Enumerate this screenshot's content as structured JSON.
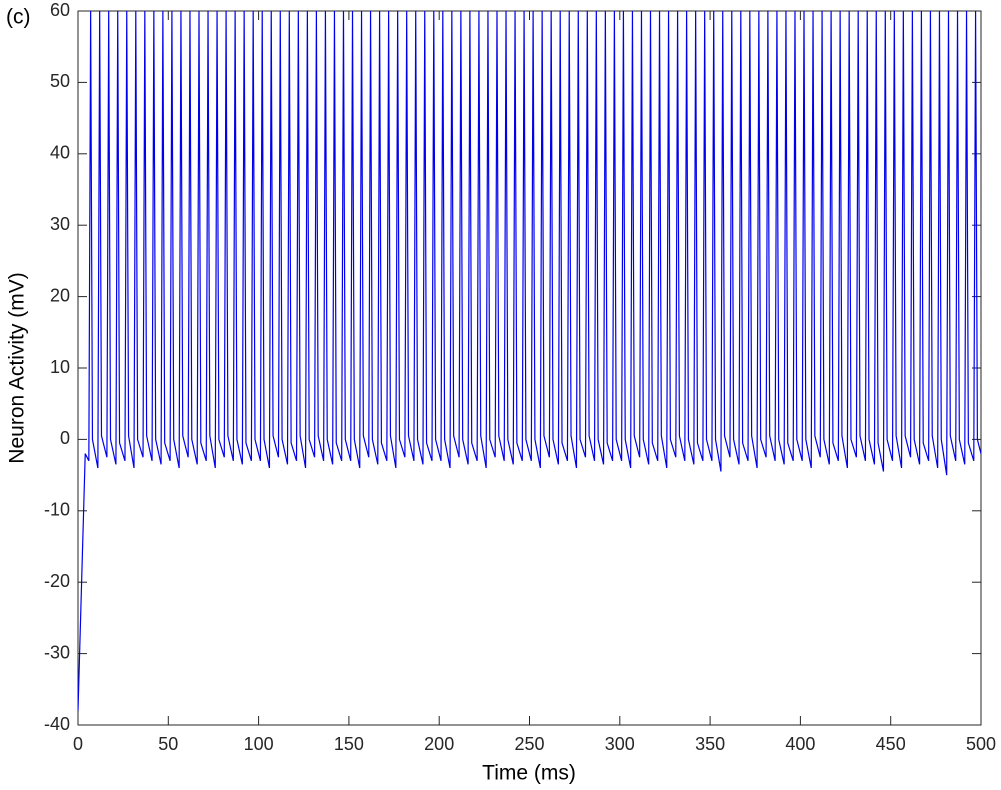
{
  "chart_data": {
    "type": "line",
    "panel_label": "(c)",
    "x_label": "Time (ms)",
    "y_label": "Neuron Activity (mV)",
    "xlim": [
      0,
      500
    ],
    "ylim": [
      -40,
      60
    ],
    "xticks": [
      0,
      50,
      100,
      150,
      200,
      250,
      300,
      350,
      400,
      450,
      500
    ],
    "yticks": [
      -40,
      -30,
      -20,
      -10,
      0,
      10,
      20,
      30,
      40,
      50,
      60
    ],
    "series": [
      {
        "color": "#0000ee",
        "x": [
          0,
          2,
          4,
          6,
          7,
          8,
          11,
          12,
          13,
          16,
          17,
          18,
          21,
          22,
          23,
          26,
          27,
          28,
          31,
          32,
          33,
          36,
          37,
          38,
          41,
          42,
          43,
          46,
          47,
          48,
          51,
          52,
          53,
          56,
          57,
          58,
          61,
          62,
          63,
          66,
          67,
          68,
          71,
          72,
          73,
          76,
          77,
          78,
          81,
          82,
          83,
          86,
          87,
          88,
          91,
          92,
          93,
          96,
          97,
          98,
          101,
          102,
          103,
          106,
          107,
          108,
          111,
          112,
          113,
          116,
          117,
          118,
          121,
          122,
          123,
          126,
          127,
          128,
          131,
          132,
          133,
          136,
          137,
          138,
          141,
          142,
          143,
          146,
          147,
          148,
          151,
          152,
          153,
          156,
          157,
          158,
          161,
          162,
          163,
          166,
          167,
          168,
          171,
          172,
          173,
          176,
          177,
          178,
          181,
          182,
          183,
          186,
          187,
          188,
          191,
          192,
          193,
          196,
          197,
          198,
          201,
          202,
          203,
          206,
          207,
          208,
          211,
          212,
          213,
          216,
          217,
          218,
          221,
          222,
          223,
          226,
          227,
          228,
          231,
          232,
          233,
          236,
          237,
          238,
          241,
          242,
          243,
          246,
          247,
          248,
          251,
          252,
          253,
          256,
          257,
          258,
          261,
          262,
          263,
          266,
          267,
          268,
          271,
          272,
          273,
          276,
          277,
          278,
          281,
          282,
          283,
          286,
          287,
          288,
          291,
          292,
          293,
          296,
          297,
          298,
          301,
          302,
          303,
          306,
          307,
          308,
          311,
          312,
          313,
          316,
          317,
          318,
          321,
          322,
          323,
          326,
          327,
          328,
          331,
          332,
          333,
          336,
          337,
          338,
          341,
          342,
          343,
          346,
          347,
          348,
          351,
          352,
          353,
          356,
          357,
          358,
          361,
          362,
          363,
          366,
          367,
          368,
          371,
          372,
          373,
          376,
          377,
          378,
          381,
          382,
          383,
          386,
          387,
          388,
          391,
          392,
          393,
          396,
          397,
          398,
          401,
          402,
          403,
          406,
          407,
          408,
          411,
          412,
          413,
          416,
          417,
          418,
          421,
          422,
          423,
          426,
          427,
          428,
          431,
          432,
          433,
          436,
          437,
          438,
          441,
          442,
          443,
          446,
          447,
          448,
          451,
          452,
          453,
          456,
          457,
          458,
          461,
          462,
          463,
          466,
          467,
          468,
          471,
          472,
          473,
          476,
          477,
          478,
          481,
          482,
          483,
          486,
          487,
          488,
          491,
          492,
          493,
          496,
          497,
          498,
          500
        ],
        "values": [
          -38,
          -20,
          -2,
          -3,
          60,
          0,
          -4,
          60,
          0.5,
          -2.5,
          60,
          0,
          -3.5,
          60,
          -0.5,
          -3,
          60,
          0.5,
          -4,
          60,
          0,
          -2.5,
          60,
          0.5,
          -3,
          60,
          0,
          -3.5,
          60,
          -0.5,
          -3,
          60,
          0,
          -4,
          60,
          0.5,
          -2.5,
          60,
          0,
          -3.5,
          60,
          -0.5,
          -3,
          60,
          0.5,
          -4,
          60,
          0,
          -2.5,
          60,
          0.5,
          -3,
          60,
          0,
          -3.5,
          60,
          -0.5,
          -3,
          60,
          0,
          -3,
          60,
          0,
          -4,
          60,
          0.5,
          -2.5,
          60,
          0,
          -3.5,
          60,
          -0.5,
          -3,
          60,
          0.5,
          -4,
          60,
          0,
          -2.5,
          60,
          0.5,
          -3,
          60,
          0,
          -3.5,
          60,
          -0.5,
          -3,
          60,
          0,
          -3,
          60,
          0,
          -4,
          60,
          0.5,
          -2.5,
          60,
          0,
          -3.5,
          60,
          -0.5,
          -3,
          60,
          0.5,
          -4,
          60,
          0,
          -2.5,
          60,
          0.5,
          -3,
          60,
          0,
          -3.5,
          60,
          -0.5,
          -3,
          60,
          0,
          -3,
          60,
          0,
          -4,
          60,
          0.5,
          -2.5,
          60,
          0,
          -3.5,
          60,
          -0.5,
          -3,
          60,
          0.5,
          -4,
          60,
          0,
          -2.5,
          60,
          0.5,
          -3,
          60,
          0,
          -3.5,
          60,
          -0.5,
          -3,
          60,
          0,
          -3,
          60,
          0,
          -4,
          60,
          0.5,
          -2.5,
          60,
          0,
          -3.5,
          60,
          -0.5,
          -3,
          60,
          0.5,
          -4,
          60,
          0,
          -2.5,
          60,
          0.5,
          -3,
          60,
          0,
          -3.5,
          60,
          -0.5,
          -3,
          60,
          0,
          -3,
          60,
          0,
          -4,
          60,
          0.5,
          -2.5,
          60,
          0,
          -3.5,
          60,
          -0.5,
          -3,
          60,
          0.5,
          -4,
          60,
          0,
          -2.5,
          60,
          0.5,
          -3,
          60,
          0,
          -3.5,
          60,
          -0.5,
          -3,
          60,
          0,
          -3,
          60,
          0,
          -4.5,
          60,
          0.5,
          -2.5,
          60,
          0,
          -3.5,
          60,
          -0.5,
          -3,
          60,
          0.5,
          -4,
          60,
          0,
          -2.5,
          60,
          0.5,
          -3,
          60,
          0,
          -3.5,
          60,
          -0.5,
          -3,
          60,
          0,
          -3,
          60,
          0,
          -4,
          60,
          0.5,
          -2.5,
          60,
          0,
          -3.5,
          60,
          -0.5,
          -3,
          60,
          0.5,
          -4,
          60,
          0,
          -2.5,
          60,
          0.5,
          -3,
          60,
          0,
          -3.5,
          60,
          -0.5,
          -4.5,
          60,
          0,
          -3,
          60,
          0.5,
          -4,
          60,
          0.5,
          -2.5,
          60,
          0,
          -3.5,
          60,
          -0.5,
          -3,
          60,
          0.5,
          -4,
          60,
          0,
          -5,
          60,
          0.5,
          -3,
          60,
          0,
          -3.5,
          60,
          -0.5,
          -3,
          60,
          0,
          -2
        ]
      }
    ]
  }
}
